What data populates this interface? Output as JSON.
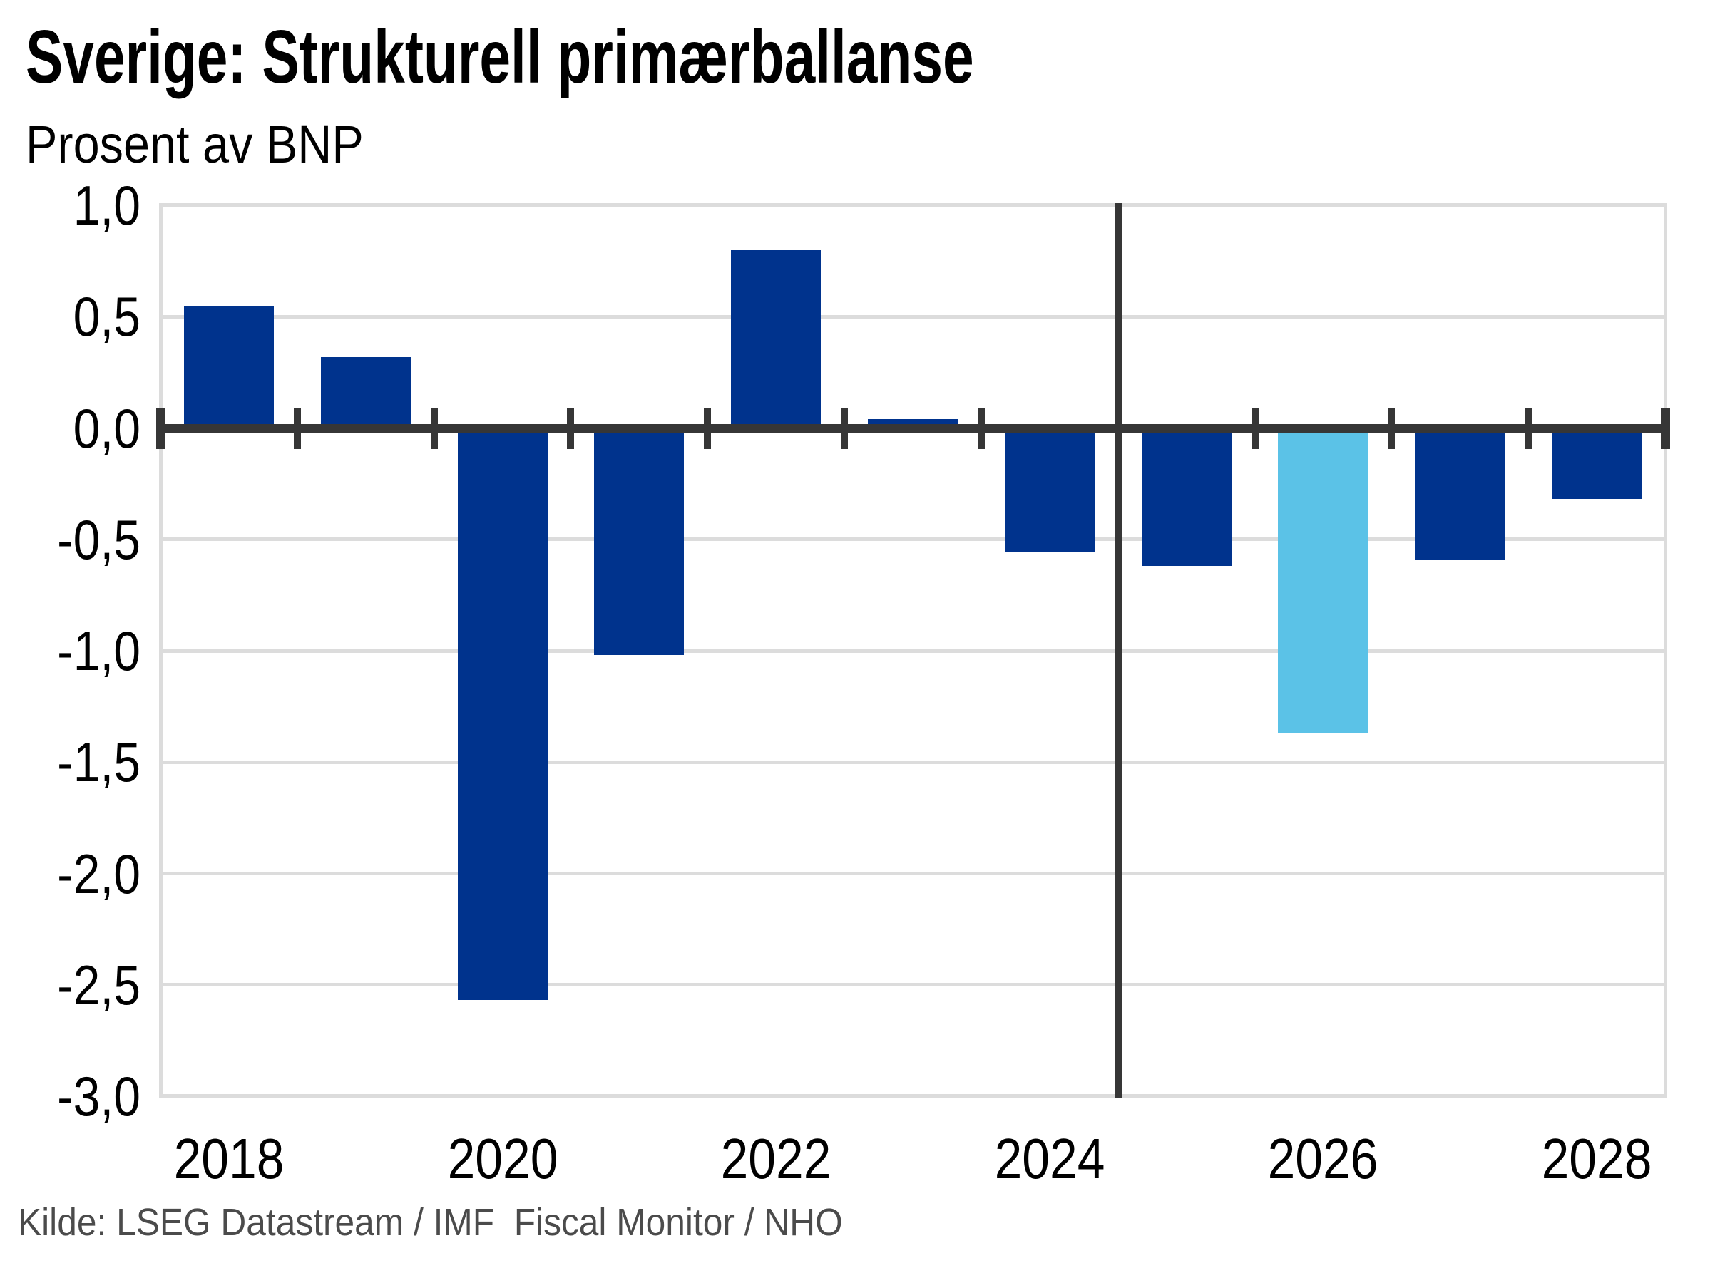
{
  "title": "Sverige: Strukturell primærballanse",
  "subtitle": "Prosent av BNP",
  "source": "Kilde: LSEG Datastream / IMF  Fiscal Monitor / NHO",
  "colors": {
    "background": "#FFFFFF",
    "bar_primary": "#00338D",
    "bar_highlight": "#5BC2E7",
    "gridline": "#DCDCDC",
    "axis": "#363636",
    "text": "#000000",
    "source_text": "#4B4B4B"
  },
  "chart_data": {
    "type": "bar",
    "title": "Sverige: Strukturell primærballanse",
    "subtitle": "Prosent av BNP",
    "source": "Kilde: LSEG Datastream / IMF  Fiscal Monitor / NHO",
    "x": [
      2018,
      2019,
      2020,
      2021,
      2022,
      2023,
      2024,
      2025,
      2026,
      2027,
      2028
    ],
    "values": [
      0.55,
      0.32,
      -2.55,
      -1.0,
      0.8,
      0.04,
      -0.54,
      -0.6,
      -1.35,
      -0.57,
      -0.3
    ],
    "series_name": "Strukturell primærbalanse, prosent av BNP",
    "highlight_year": 2026,
    "forecast_divider_after_year": 2024,
    "x_tick_labels": [
      "2018",
      "2020",
      "2022",
      "2024",
      "2026",
      "2028"
    ],
    "y_tick_labels": [
      "1,0",
      "0,5",
      "0,0",
      "-0,5",
      "-1,0",
      "-1,5",
      "-2,0",
      "-2,5",
      "-3,0"
    ],
    "y_tick_values": [
      1.0,
      0.5,
      0.0,
      -0.5,
      -1.0,
      -1.5,
      -2.0,
      -2.5,
      -3.0
    ],
    "ylim": [
      -3.0,
      1.0
    ],
    "xlabel": "",
    "ylabel": "Prosent av BNP",
    "grid": true,
    "legend": false,
    "decimal_separator": ","
  }
}
